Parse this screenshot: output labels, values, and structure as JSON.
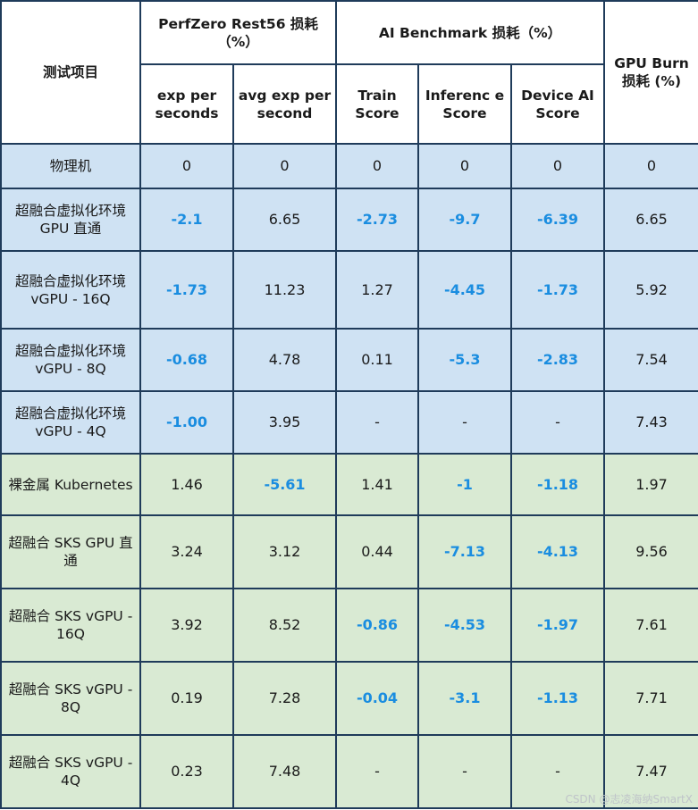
{
  "header": {
    "item": "测试项目",
    "perfzero_group": "PerfZero Rest56 损耗（%）",
    "ai_group": "AI Benchmark 损耗（%）",
    "gpu_burn": "GPU Burn 损耗 (%)",
    "exp_per_seconds": "exp per seconds",
    "avg_exp_per_second": "avg exp per second",
    "train_score": "Train Score",
    "inference_score": "Inferenc e Score",
    "device_ai_score": "Device AI Score"
  },
  "rows": [
    {
      "label": "物理机",
      "group": "blue",
      "values": [
        "0",
        "0",
        "0",
        "0",
        "0",
        "0"
      ],
      "highlight": [
        false,
        false,
        false,
        false,
        false,
        false
      ]
    },
    {
      "label": "超融合虚拟化环境 GPU 直通",
      "group": "blue",
      "values": [
        "-2.1",
        "6.65",
        "-2.73",
        "-9.7",
        "-6.39",
        "6.65"
      ],
      "highlight": [
        true,
        false,
        true,
        true,
        true,
        false
      ]
    },
    {
      "label": "超融合虚拟化环境 vGPU - 16Q",
      "group": "blue",
      "values": [
        "-1.73",
        "11.23",
        "1.27",
        "-4.45",
        "-1.73",
        "5.92"
      ],
      "highlight": [
        true,
        false,
        false,
        true,
        true,
        false
      ]
    },
    {
      "label": "超融合虚拟化环境 vGPU - 8Q",
      "group": "blue",
      "values": [
        "-0.68",
        "4.78",
        "0.11",
        "-5.3",
        "-2.83",
        "7.54"
      ],
      "highlight": [
        true,
        false,
        false,
        true,
        true,
        false
      ]
    },
    {
      "label": "超融合虚拟化环境 vGPU - 4Q",
      "group": "blue",
      "values": [
        "-1.00",
        "3.95",
        "-",
        "-",
        "-",
        "7.43"
      ],
      "highlight": [
        true,
        false,
        false,
        false,
        false,
        false
      ]
    },
    {
      "label": "裸金属 Kubernetes",
      "group": "green",
      "values": [
        "1.46",
        "-5.61",
        "1.41",
        "-1",
        "-1.18",
        "1.97"
      ],
      "highlight": [
        false,
        true,
        false,
        true,
        true,
        false
      ]
    },
    {
      "label": "超融合 SKS GPU 直通",
      "group": "green",
      "values": [
        "3.24",
        "3.12",
        "0.44",
        "-7.13",
        "-4.13",
        "9.56"
      ],
      "highlight": [
        false,
        false,
        false,
        true,
        true,
        false
      ]
    },
    {
      "label": "超融合 SKS vGPU - 16Q",
      "group": "green",
      "values": [
        "3.92",
        "8.52",
        "-0.86",
        "-4.53",
        "-1.97",
        "7.61"
      ],
      "highlight": [
        false,
        false,
        true,
        true,
        true,
        false
      ]
    },
    {
      "label": "超融合 SKS vGPU - 8Q",
      "group": "green",
      "values": [
        "0.19",
        "7.28",
        "-0.04",
        "-3.1",
        "-1.13",
        "7.71"
      ],
      "highlight": [
        false,
        false,
        true,
        true,
        true,
        false
      ]
    },
    {
      "label": "超融合 SKS vGPU - 4Q",
      "group": "green",
      "values": [
        "0.23",
        "7.48",
        "-",
        "-",
        "-",
        "7.47"
      ],
      "highlight": [
        false,
        false,
        false,
        false,
        false,
        false
      ]
    }
  ],
  "watermark": "CSDN @志凌海纳SmartX",
  "colors": {
    "highlight": "#1a8de0",
    "blue_row": "#cfe2f3",
    "green_row": "#d9ead3",
    "border": "#1f3b5a"
  }
}
